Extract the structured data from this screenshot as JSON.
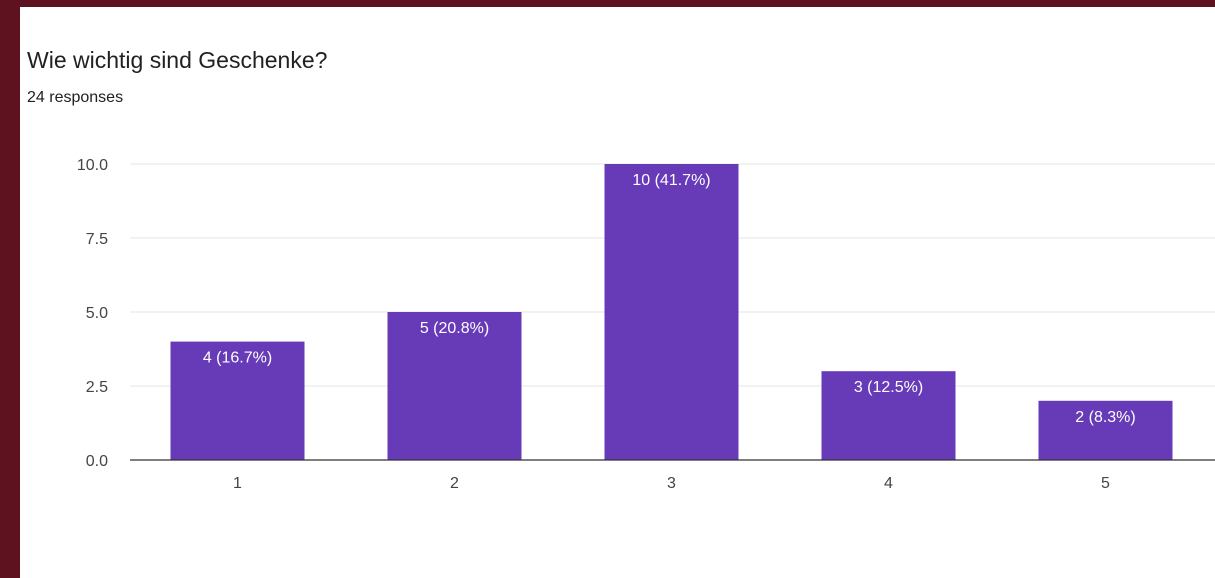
{
  "question": {
    "title": "Wie wichtig sind Geschenke?",
    "responses": "24 responses"
  },
  "colors": {
    "bar": "#673ab7",
    "frame": "#5e1220",
    "grid": "#e6e6e6",
    "axis": "#333333"
  },
  "chart_data": {
    "type": "bar",
    "title": "Wie wichtig sind Geschenke?",
    "subtitle": "24 responses",
    "categories": [
      "1",
      "2",
      "3",
      "4",
      "5"
    ],
    "values": [
      4,
      5,
      10,
      3,
      2
    ],
    "data_labels": [
      "4 (16.7%)",
      "5 (20.8%)",
      "10 (41.7%)",
      "3 (12.5%)",
      "2 (8.3%)"
    ],
    "y_ticks": [
      0,
      2.5,
      5,
      7.5,
      10
    ],
    "y_tick_labels": [
      "0.0",
      "2.5",
      "5.0",
      "7.5",
      "10.0"
    ],
    "ylim": [
      0,
      10
    ],
    "xlabel": "",
    "ylabel": "",
    "grid": true,
    "legend": "none"
  }
}
